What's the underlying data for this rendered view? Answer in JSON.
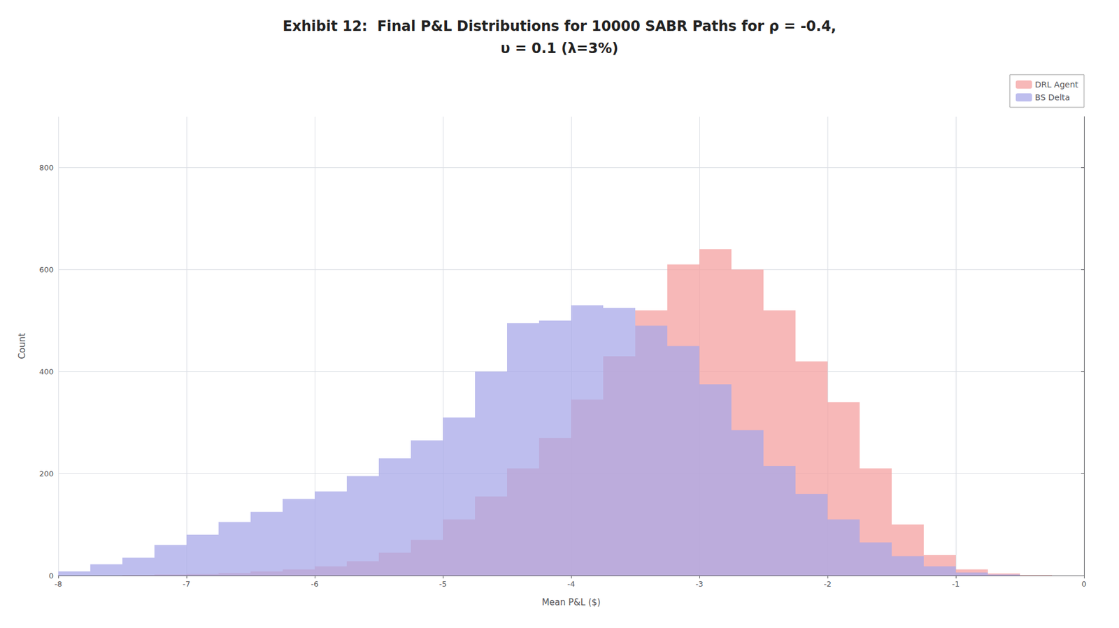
{
  "chart_data": {
    "type": "histogram",
    "title": "Exhibit 12:  Final P&L Distributions for 10000 SABR Paths for ρ = -0.4,",
    "subtitle": "υ = 0.1 (λ=3%)",
    "xlabel": "Mean P&L ($)",
    "ylabel": "Count",
    "bins": [
      -8.0,
      -7.75,
      -7.5,
      -7.25,
      -7.0,
      -6.75,
      -6.5,
      -6.25,
      -6.0,
      -5.75,
      -5.5,
      -5.25,
      -5.0,
      -4.75,
      -4.5,
      -4.25,
      -4.0,
      -3.75,
      -3.5,
      -3.25,
      -3.0,
      -2.75,
      -2.5,
      -2.25,
      -2.0,
      -1.75,
      -1.5,
      -1.25,
      -1.0,
      -0.75,
      -0.5,
      -0.25
    ],
    "series": [
      {
        "name": "DRL Agent",
        "color": "#F4A0A0",
        "values": [
          0,
          0,
          1,
          2,
          3,
          5,
          8,
          12,
          18,
          28,
          45,
          70,
          110,
          155,
          210,
          270,
          345,
          430,
          520,
          610,
          640,
          600,
          520,
          420,
          340,
          210,
          100,
          40,
          12,
          4,
          1
        ]
      },
      {
        "name": "BS Delta",
        "color": "#A8A8E8",
        "values": [
          8,
          22,
          35,
          60,
          80,
          105,
          125,
          150,
          165,
          195,
          230,
          265,
          310,
          400,
          495,
          500,
          530,
          525,
          490,
          450,
          375,
          285,
          215,
          160,
          110,
          65,
          38,
          18,
          6,
          2,
          0
        ]
      }
    ],
    "xlim": [
      -8,
      0
    ],
    "ylim": [
      0,
      900
    ],
    "xticks": [
      -8,
      -7,
      -6,
      -5,
      -4,
      -3,
      -2,
      -1,
      0
    ],
    "yticks": [
      0,
      200,
      400,
      600,
      800
    ],
    "grid": true,
    "legend": "upper right"
  }
}
